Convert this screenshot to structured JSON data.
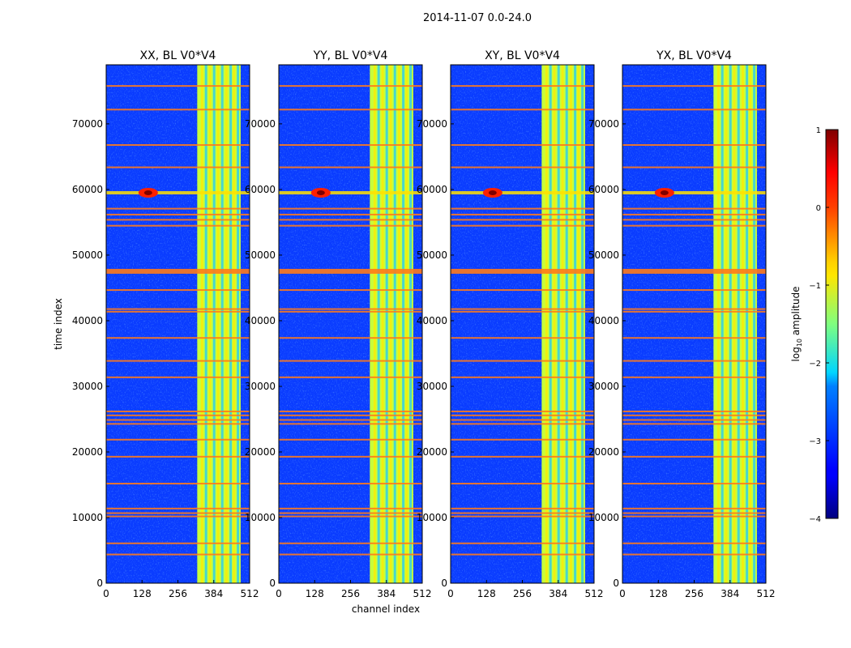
{
  "chart_data": {
    "type": "heatmap",
    "suptitle": "2014-11-07 0.0-24.0",
    "xlabel": "channel index",
    "ylabel": "time index",
    "xlim": [
      0,
      512
    ],
    "ylim": [
      0,
      79000
    ],
    "xticks": [
      "0",
      "128",
      "256",
      "384",
      "512"
    ],
    "yticks": [
      "0",
      "10000",
      "20000",
      "30000",
      "40000",
      "50000",
      "60000",
      "70000"
    ],
    "panels": [
      {
        "title": "XX, BL V0*V4"
      },
      {
        "title": "YY, BL V0*V4"
      },
      {
        "title": "XY, BL V0*V4"
      },
      {
        "title": "YX, BL V0*V4"
      }
    ],
    "colorbar": {
      "label_prefix": "log",
      "label_sub": "10",
      "label_suffix": " amplitude",
      "range": [
        -4,
        1
      ],
      "ticks": [
        "1",
        "0",
        "−1",
        "−2",
        "−3",
        "−4"
      ],
      "colormap": "jet"
    },
    "bright_channel_band": [
      325,
      480
    ],
    "flagged_rows": [
      4500,
      6200,
      10300,
      10800,
      11500,
      15300,
      19400,
      22000,
      24400,
      25000,
      25700,
      26300,
      31500,
      34000,
      37500,
      41500,
      41900,
      44800,
      47900,
      54600,
      55500,
      56300,
      57200,
      63500,
      66900,
      72300,
      75900
    ],
    "hot_spot": {
      "channel": 150,
      "time": 59500
    }
  }
}
